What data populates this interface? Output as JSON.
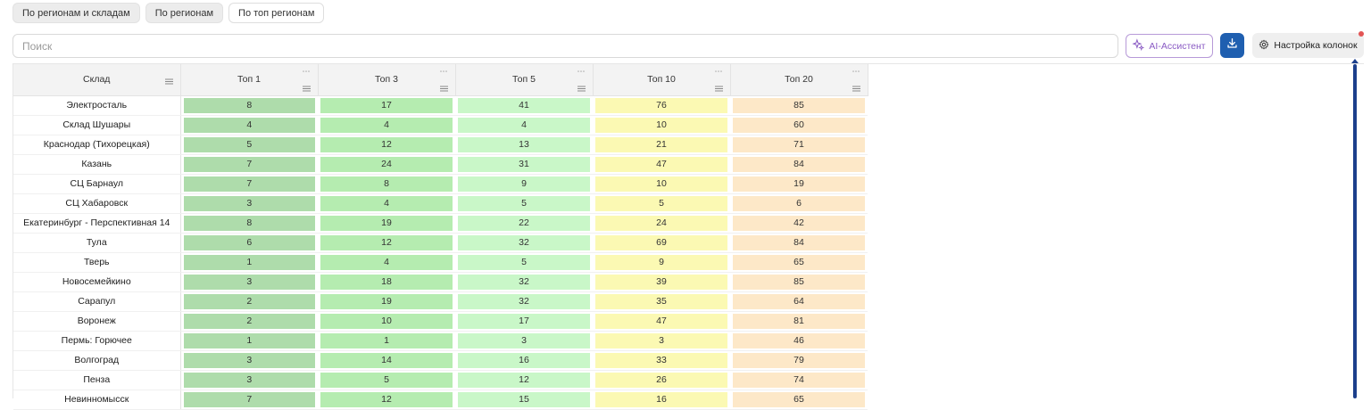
{
  "tabs": [
    {
      "label": "По регионам и складам"
    },
    {
      "label": "По регионам"
    },
    {
      "label": "По топ регионам"
    }
  ],
  "search": {
    "placeholder": "Поиск",
    "value": ""
  },
  "toolbar": {
    "ai_label": "AI-Ассистент",
    "config_label": "Настройка колонок",
    "accent_color": "#1f5fb0",
    "ai_color": "#8a5bc4"
  },
  "table": {
    "columns": [
      "Склад",
      "Топ 1",
      "Топ 3",
      "Топ 5",
      "Топ 10",
      "Топ 20"
    ],
    "rows": [
      {
        "name": "Электросталь",
        "values": [
          "8",
          "17",
          "41",
          "76",
          "85"
        ]
      },
      {
        "name": "Склад Шушары",
        "values": [
          "4",
          "4",
          "4",
          "10",
          "60"
        ]
      },
      {
        "name": "Краснодар (Тихорецкая)",
        "values": [
          "5",
          "12",
          "13",
          "21",
          "71"
        ]
      },
      {
        "name": "Казань",
        "values": [
          "7",
          "24",
          "31",
          "47",
          "84"
        ]
      },
      {
        "name": "СЦ Барнаул",
        "values": [
          "7",
          "8",
          "9",
          "10",
          "19"
        ]
      },
      {
        "name": "СЦ Хабаровск",
        "values": [
          "3",
          "4",
          "5",
          "5",
          "6"
        ]
      },
      {
        "name": "Екатеринбург - Перспективная 14",
        "values": [
          "8",
          "19",
          "22",
          "24",
          "42"
        ]
      },
      {
        "name": "Тула",
        "values": [
          "6",
          "12",
          "32",
          "69",
          "84"
        ]
      },
      {
        "name": "Тверь",
        "values": [
          "1",
          "4",
          "5",
          "9",
          "65"
        ]
      },
      {
        "name": "Новосемейкино",
        "values": [
          "3",
          "18",
          "32",
          "39",
          "85"
        ]
      },
      {
        "name": "Сарапул",
        "values": [
          "2",
          "19",
          "32",
          "35",
          "64"
        ]
      },
      {
        "name": "Воронеж",
        "values": [
          "2",
          "10",
          "17",
          "47",
          "81"
        ]
      },
      {
        "name": "Пермь: Горючее",
        "values": [
          "1",
          "1",
          "3",
          "3",
          "46"
        ]
      },
      {
        "name": "Волгоград",
        "values": [
          "3",
          "14",
          "16",
          "33",
          "79"
        ]
      },
      {
        "name": "Пенза",
        "values": [
          "3",
          "5",
          "12",
          "26",
          "74"
        ]
      },
      {
        "name": "Невинномысск",
        "values": [
          "7",
          "12",
          "15",
          "16",
          "65"
        ]
      }
    ],
    "cell_colors": {
      "Топ 1": "#aedcab",
      "Топ 3": "#b5ecb0",
      "Топ 5": "#c9f7c8",
      "Топ 10": "#fbf9b3",
      "Топ 20": "#fde8c8"
    }
  }
}
